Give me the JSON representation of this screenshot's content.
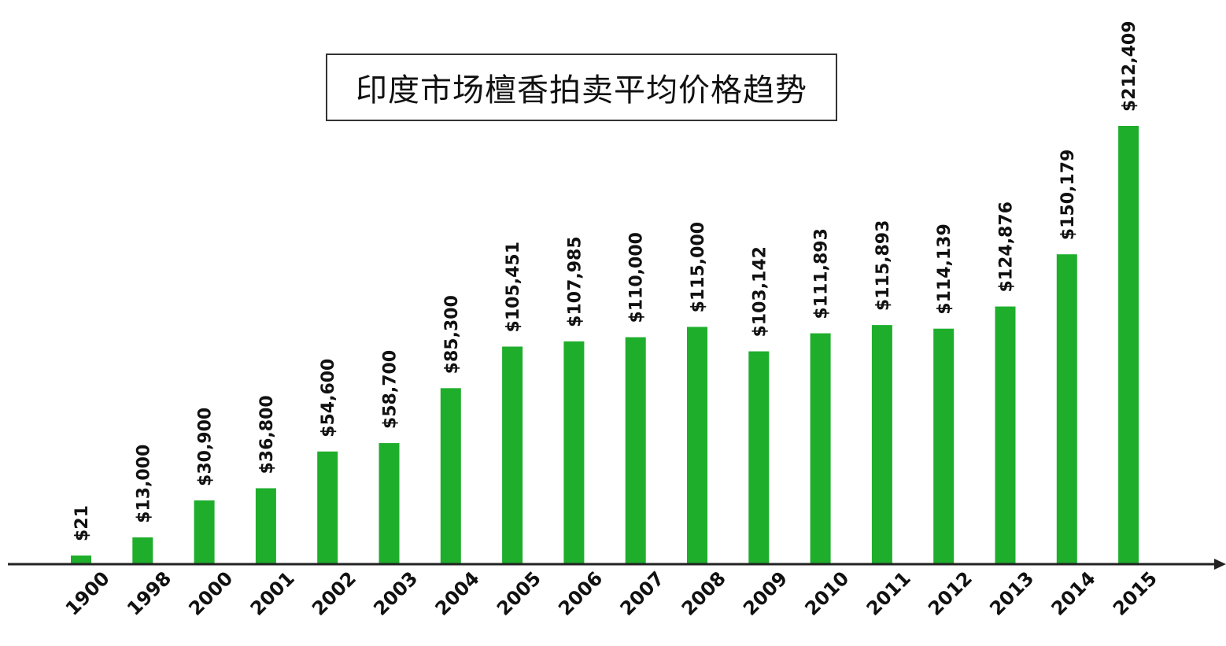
{
  "chart_data": {
    "type": "bar",
    "title": "印度市场檀香拍卖平均价格趋势",
    "categories": [
      "1900",
      "1998",
      "2000",
      "2001",
      "2002",
      "2003",
      "2004",
      "2005",
      "2006",
      "2007",
      "2008",
      "2009",
      "2010",
      "2011",
      "2012",
      "2013",
      "2014",
      "2015"
    ],
    "values": [
      21,
      13000,
      30900,
      36800,
      54600,
      58700,
      85300,
      105451,
      107985,
      110000,
      115000,
      103142,
      111893,
      115893,
      114139,
      124876,
      150179,
      212409
    ],
    "data_labels": [
      "$21",
      "$13,000",
      "$30,900",
      "$36,800",
      "$54,600",
      "$58,700",
      "$85,300",
      "$105,451",
      "$107,985",
      "$110,000",
      "$115,000",
      "$103,142",
      "$111,893",
      "$115,893",
      "$114,139",
      "$124,876",
      "$150,179",
      "$212,409"
    ],
    "xlabel": "",
    "ylabel": "",
    "ylim": [
      0,
      212409
    ],
    "grid": false,
    "colors": {
      "bar": "#1fae2c",
      "axis": "#222222",
      "text": "#111111"
    }
  }
}
